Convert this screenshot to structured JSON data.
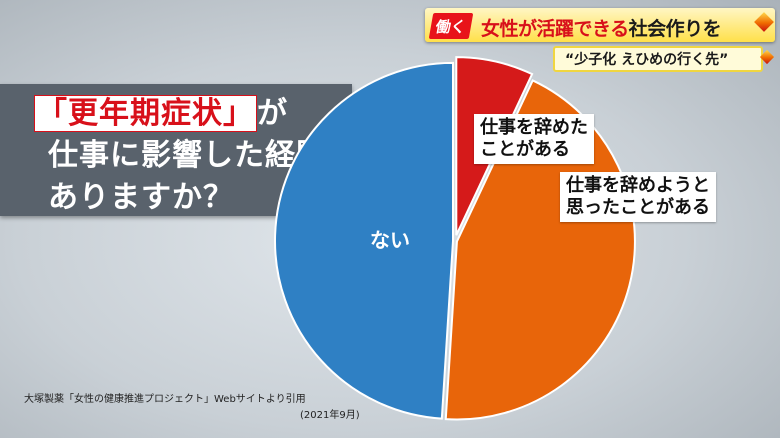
{
  "banner": {
    "tag": "働く",
    "headline_red": "女性が活躍できる",
    "headline_black": "社会作りを",
    "sub": "“少子化 えひめの行く先”"
  },
  "question": {
    "line1_highlight": "「更年期症状」",
    "line1_rest": "が",
    "line2": "仕事に影響した経験は",
    "line3": "ありますか？"
  },
  "source": {
    "text": "大塚製薬「女性の健康推進プロジェクト」Webサイトより引用",
    "date": "(2021年9月)"
  },
  "chart_data": {
    "type": "pie",
    "slices": [
      {
        "label": "仕事を辞めた\nことがある",
        "value": 7,
        "color": "#d51a1a"
      },
      {
        "label": "仕事を辞めようと\n思ったことがある",
        "value": 44,
        "color": "#e8650a"
      },
      {
        "label": "ない",
        "value": 49,
        "color": "#2f80c4"
      }
    ]
  }
}
